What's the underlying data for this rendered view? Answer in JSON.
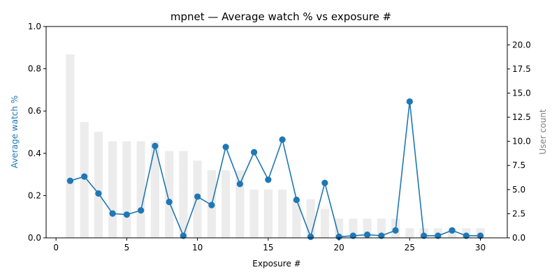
{
  "chart_data": {
    "type": "bar+line",
    "title": "mpnet — Average watch % vs exposure #",
    "xlabel": "Exposure #",
    "ylabel_left": "Average watch %",
    "ylabel_right": "User count",
    "xlim": [
      -0.7,
      31.9
    ],
    "ylim_left": [
      0,
      1.0
    ],
    "ylim_right": [
      0,
      21.9
    ],
    "x_ticks": [
      "0",
      "5",
      "10",
      "15",
      "20",
      "25",
      "30"
    ],
    "y_ticks_left": [
      "0.0",
      "0.2",
      "0.4",
      "0.6",
      "0.8",
      "1.0"
    ],
    "y_ticks_right": [
      "0.0",
      "2.5",
      "5.0",
      "7.5",
      "10.0",
      "12.5",
      "15.0",
      "17.5",
      "20.0"
    ],
    "x": [
      1,
      2,
      3,
      4,
      5,
      6,
      7,
      8,
      9,
      10,
      11,
      12,
      13,
      14,
      15,
      16,
      17,
      18,
      19,
      20,
      21,
      22,
      23,
      24,
      25,
      26,
      27,
      28,
      29,
      30
    ],
    "series": [
      {
        "name": "User count",
        "axis": "right",
        "kind": "bar",
        "values": [
          19,
          12,
          11,
          10,
          10,
          10,
          10,
          9,
          9,
          8,
          7,
          7,
          7,
          5,
          5,
          5,
          4,
          4,
          3,
          2,
          2,
          2,
          2,
          2,
          1,
          1,
          1,
          1,
          1,
          1
        ]
      },
      {
        "name": "Average watch %",
        "axis": "left",
        "kind": "line",
        "values": [
          0.27,
          0.29,
          0.21,
          0.115,
          0.11,
          0.13,
          0.435,
          0.17,
          0.01,
          0.195,
          0.155,
          0.43,
          0.255,
          0.405,
          0.275,
          0.465,
          0.18,
          0.005,
          0.26,
          0.005,
          0.01,
          0.015,
          0.01,
          0.035,
          0.645,
          0.01,
          0.01,
          0.035,
          0.01,
          0.01
        ]
      }
    ],
    "colors": {
      "line": "#1f77b4",
      "bar": "#ececec",
      "left_label": "#1f77b4",
      "right_label": "#808080"
    }
  }
}
